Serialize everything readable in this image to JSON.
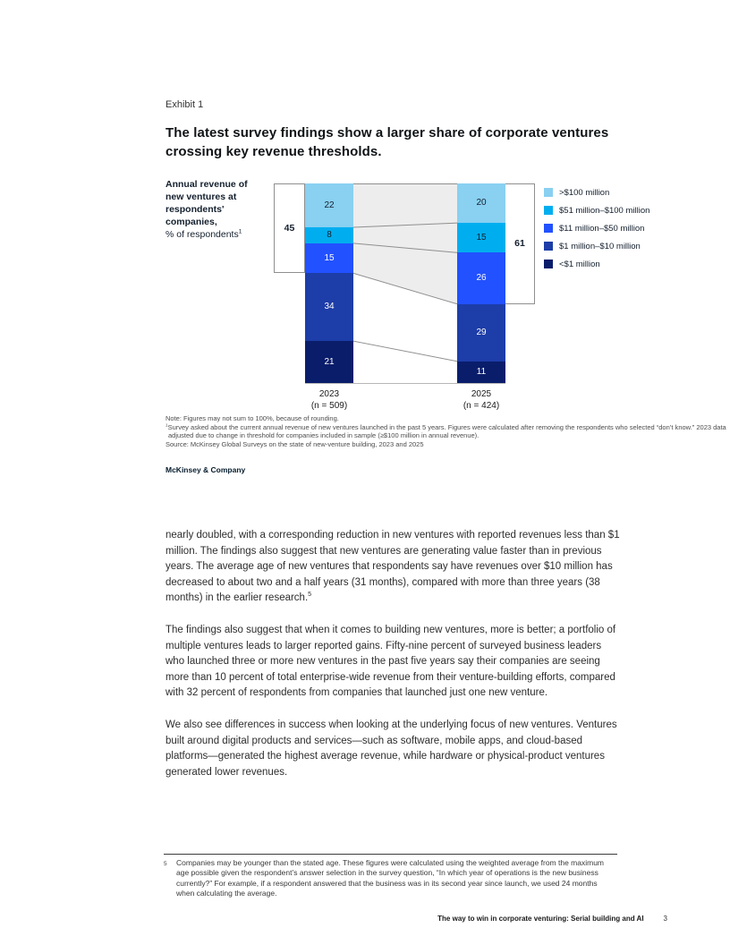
{
  "exhibit": {
    "label": "Exhibit 1",
    "title": "The latest survey findings show a larger share of corporate ventures crossing key revenue thresholds."
  },
  "chart": {
    "y_axis_title_bold": "Annual revenue of new ventures at respondents' companies,",
    "y_axis_title_regular": "% of respondents",
    "y_axis_title_superscript": "1"
  },
  "chart_data": {
    "type": "bar",
    "variant": "100%-stacked-columns-with-flow-bands",
    "title": "Annual revenue of new ventures at respondents' companies, % of respondents",
    "categories": [
      "2023",
      "2025"
    ],
    "category_sublabels": [
      "(n = 509)",
      "(n = 424)"
    ],
    "series": [
      {
        "name": ">$100 million",
        "values": [
          22,
          20
        ],
        "color": "#89D0F1",
        "label_color": "#14202e"
      },
      {
        "name": "$51 million–$100 million",
        "values": [
          8,
          15
        ],
        "color": "#00AEEF",
        "label_color": "#14202e"
      },
      {
        "name": "$11 million–$50 million",
        "values": [
          15,
          26
        ],
        "color": "#2251FF",
        "label_color": "#ffffff"
      },
      {
        "name": "$1 million–$10 million",
        "values": [
          34,
          29
        ],
        "color": "#1D3DA8",
        "label_color": "#ffffff"
      },
      {
        "name": "<$1 million",
        "values": [
          21,
          11
        ],
        "color": "#0A1D6B",
        "label_color": "#ffffff"
      }
    ],
    "bracket_annotations": [
      {
        "label": "45",
        "category": "2023",
        "covers_series": [
          ">$100 million",
          "$51 million–$100 million",
          "$11 million–$50 million"
        ]
      },
      {
        "label": "61",
        "category": "2025",
        "covers_series": [
          ">$100 million",
          "$51 million–$100 million",
          "$11 million–$50 million"
        ]
      }
    ],
    "legend_position": "right",
    "grid": false,
    "band_fill": "#EDEDED",
    "band_line_color": "#8f8f8f"
  },
  "notes": {
    "note": "Note: Figures may not sum to 100%, because of rounding.",
    "footnote_marker": "1",
    "footnote": "Survey asked about the current annual revenue of new ventures launched in the past 5 years. Figures were calculated after removing the respondents who selected “don’t know.” 2023 data adjusted due to change in threshold for companies included in sample (≥$100 million in annual revenue).",
    "source": "Source: McKinsey Global Surveys on the state of new-venture building, 2023 and 2025",
    "brand": "McKinsey & Company"
  },
  "body": {
    "paragraphs": [
      {
        "text": "nearly doubled, with a corresponding reduction in new ventures with reported revenues less than $1 million. The findings also suggest that new ventures are generating value faster than in previous years. The average age of new ventures that respondents say have revenues over $10 million has decreased to about two and a half years (31 months), compared with more than three years (38 months) in the earlier research.",
        "superscript": "5"
      },
      {
        "text": "The findings also suggest that when it comes to building new ventures, more is better; a portfolio of multiple ventures leads to larger reported gains. Fifty-nine percent of surveyed business leaders who launched three or more new ventures in the past five years say their companies are seeing more than 10 percent of total enterprise-wide revenue from their venture-building efforts, compared with 32 percent of respondents from companies that launched just one new venture.",
        "superscript": ""
      },
      {
        "text": "We also see differences in success when looking at the underlying focus of new ventures. Ventures built around digital products and services—such as software, mobile apps, and cloud-based platforms—generated the highest average revenue, while hardware or physical-product ventures generated lower revenues.",
        "superscript": ""
      }
    ]
  },
  "page_footnote": {
    "marker": "5",
    "text": "Companies may be younger than the stated age. These figures were calculated using the weighted average from the maximum age possible given the respondent’s answer selection in the survey question, “In which year of operations is the new business currently?” For example, if a respondent answered that the business was in its second year since launch, we used 24 months when calculating the average."
  },
  "footer": {
    "publication_title": "The way to win in corporate venturing: Serial building and AI",
    "page_number": "3"
  }
}
